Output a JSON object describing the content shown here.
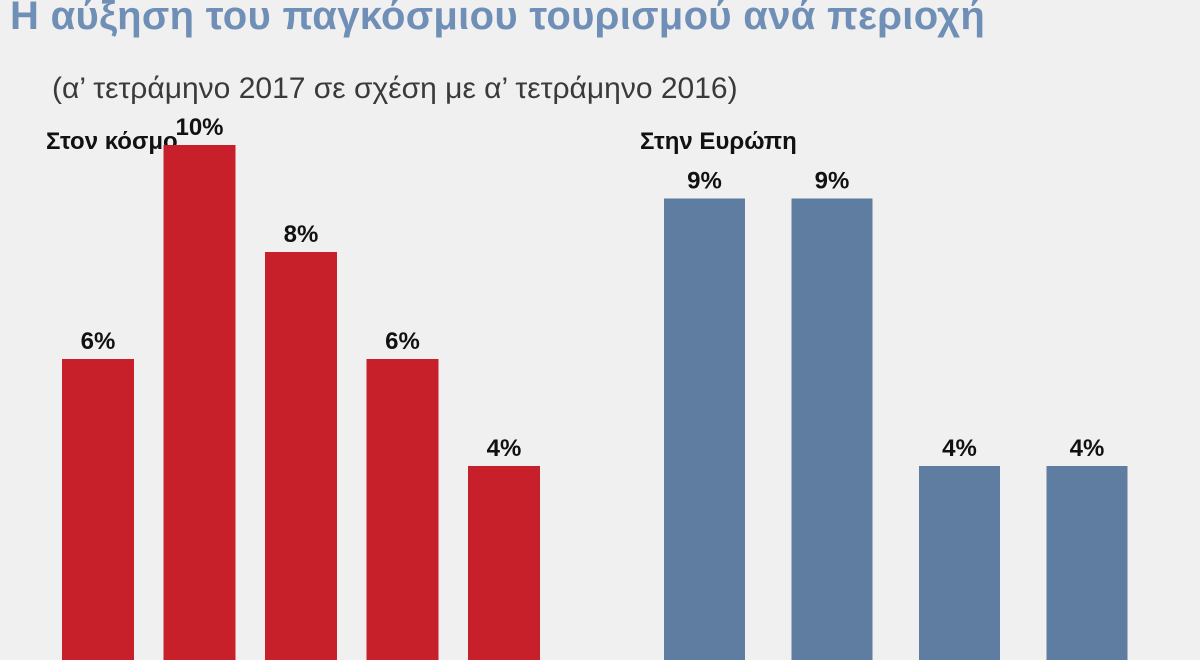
{
  "title": "Η αύξηση του παγκόσμιου τουρισμού ανά περιοχή",
  "subtitle": "(α’ τετράμηνο 2017 σε σχέση με α’ τετράμηνο 2016)",
  "colors": {
    "title": "#6f8fb6",
    "world_bars": "#c8202a",
    "europe_bars": "#5f7ca1",
    "background": "#f0f0f0"
  },
  "chart_data": [
    {
      "type": "bar",
      "title": "Στον κόσμο",
      "values": [
        6,
        10,
        8,
        6,
        4
      ],
      "data_labels": [
        "6%",
        "10%",
        "8%",
        "6%",
        "4%"
      ],
      "ylim": [
        0,
        12
      ]
    },
    {
      "type": "bar",
      "title": "Στην Ευρώπη",
      "values": [
        9,
        9,
        4,
        4
      ],
      "data_labels": [
        "9%",
        "9%",
        "4%",
        "4%"
      ],
      "ylim": [
        0,
        12
      ]
    }
  ]
}
